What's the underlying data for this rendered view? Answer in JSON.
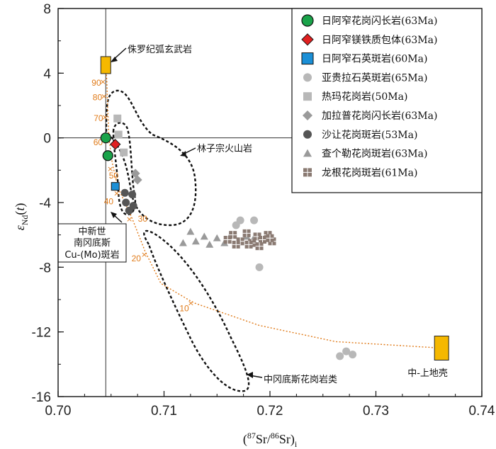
{
  "chart_data": {
    "type": "scatter",
    "xlabel": "(87Sr/86Sr)i",
    "ylabel": "εNd(t)",
    "xlim": [
      0.7,
      0.74
    ],
    "ylim": [
      -16,
      8
    ],
    "xticks": [
      "0.70",
      "0.71",
      "0.72",
      "0.73",
      "0.74"
    ],
    "yticks": [
      "8",
      "4",
      "0",
      "-4",
      "-8",
      "-12",
      "-16"
    ],
    "reference_lines": {
      "x": 0.7045,
      "y": 0
    },
    "series": [
      {
        "name": "日阿窄花岗闪长岩(63Ma)",
        "marker": "circle",
        "color": "#1aa34a",
        "x": [
          0.7045,
          0.7047
        ],
        "y": [
          0.0,
          -1.1
        ]
      },
      {
        "name": "日阿窄镁铁质包体(63Ma)",
        "marker": "diamond",
        "color": "#e02020",
        "x": [
          0.7054
        ],
        "y": [
          -0.4
        ]
      },
      {
        "name": "日阿窄石英斑岩(60Ma)",
        "marker": "square",
        "color": "#1b8fd6",
        "x": [
          0.7054
        ],
        "y": [
          -3.0
        ]
      },
      {
        "name": "亚贵拉石英斑岩(65Ma)",
        "marker": "circle",
        "color": "#b8b8b8",
        "x": [
          0.7168,
          0.7172,
          0.7185,
          0.719,
          0.7266,
          0.7272,
          0.7278
        ],
        "y": [
          -5.4,
          -5.1,
          -5.1,
          -8.0,
          -13.5,
          -13.2,
          -13.4
        ]
      },
      {
        "name": "热玛花岗岩(50Ma)",
        "marker": "square",
        "color": "#b8b8b8",
        "x": [
          0.7056,
          0.7057,
          0.7062
        ],
        "y": [
          1.2,
          0.2,
          -0.9
        ]
      },
      {
        "name": "加拉普花岗闪长岩(63Ma)",
        "marker": "diamond",
        "color": "#9a9a9a",
        "x": [
          0.7073,
          0.7075
        ],
        "y": [
          -2.2,
          -2.6
        ]
      },
      {
        "name": "沙让花岗斑岩(53Ma)",
        "marker": "circle",
        "color": "#555555",
        "x": [
          0.7063,
          0.7064,
          0.7067,
          0.707,
          0.7071
        ],
        "y": [
          -3.4,
          -4.0,
          -4.5,
          -3.5,
          -4.2
        ]
      },
      {
        "name": "查个勒花岗斑岩(63Ma)",
        "marker": "triangle",
        "color": "#9a9a9a",
        "x": [
          0.7118,
          0.7125,
          0.713,
          0.7138,
          0.7143,
          0.715,
          0.7157,
          0.7163,
          0.717,
          0.7178,
          0.7184
        ],
        "y": [
          -6.5,
          -5.8,
          -6.4,
          -6.1,
          -6.6,
          -6.2,
          -6.5,
          -6.0,
          -6.4,
          -6.1,
          -6.3
        ]
      },
      {
        "name": "龙根花岗斑岩(61Ma)",
        "marker": "square-plus",
        "color": "#8a7a72",
        "x": [
          0.716,
          0.7165,
          0.7172,
          0.7178,
          0.7183,
          0.7188,
          0.7193,
          0.7198,
          0.7202,
          0.7168,
          0.718,
          0.719,
          0.72
        ],
        "y": [
          -6.3,
          -6.0,
          -6.4,
          -5.9,
          -6.5,
          -6.1,
          -6.3,
          -6.0,
          -6.4,
          -6.6,
          -6.6,
          -6.7,
          -6.2
        ]
      }
    ],
    "end_members": [
      {
        "label": "侏罗纪弧玄武岩",
        "x": 0.7045,
        "y": 4.5,
        "color": "#f5b800"
      },
      {
        "label": "中-上地壳",
        "x": 0.7362,
        "y": -13.0,
        "color": "#f5b800"
      }
    ],
    "mixing_curve": {
      "color": "#e07b1a",
      "labels": [
        "90",
        "80",
        "70",
        "60",
        "50",
        "40",
        "30",
        "20",
        "10"
      ],
      "points": [
        [
          0.7045,
          4.5
        ],
        [
          0.7046,
          3.5
        ],
        [
          0.7047,
          1.5
        ],
        [
          0.7048,
          0.0
        ],
        [
          0.7051,
          -1.5
        ],
        [
          0.7056,
          -3.0
        ],
        [
          0.707,
          -5.0
        ],
        [
          0.7082,
          -7.0
        ],
        [
          0.7097,
          -9.0
        ],
        [
          0.7128,
          -10.2
        ],
        [
          0.719,
          -11.6
        ],
        [
          0.7262,
          -12.6
        ],
        [
          0.7362,
          -13.0
        ]
      ],
      "ticks": [
        [
          0.7045,
          3.5,
          "90"
        ],
        [
          0.7046,
          2.6,
          "80"
        ],
        [
          0.7047,
          1.3,
          "70"
        ],
        [
          0.7048,
          -0.2,
          "60"
        ],
        [
          0.7052,
          -1.9,
          "50"
        ],
        [
          0.7058,
          -3.4,
          "40"
        ],
        [
          0.707,
          -5.0,
          "30"
        ],
        [
          0.7084,
          -7.2,
          "20"
        ],
        [
          0.7128,
          -10.2,
          "10"
        ]
      ]
    },
    "field_labels": [
      "林子宗火山岩",
      "中冈底斯花岗岩类",
      "中新世",
      "南冈底斯",
      "Cu-(Mo)斑岩"
    ]
  }
}
